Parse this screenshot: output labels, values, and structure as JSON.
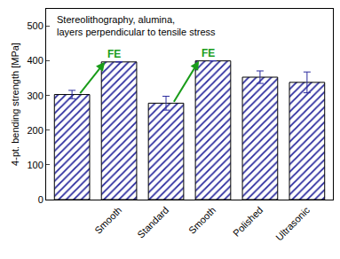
{
  "chart_data": {
    "type": "bar",
    "annotation": [
      "Stereolithography, alumina,",
      "layers perpendicular to tensile stress"
    ],
    "y_label": "4-pt. bending strength [MPa]",
    "categories": [
      null,
      "Smooth",
      "Standard",
      "Smooth",
      "Polished",
      "Ultrasonic"
    ],
    "values": [
      303,
      397,
      278,
      400,
      353,
      338
    ],
    "errors": [
      12,
      null,
      20,
      null,
      18,
      30
    ],
    "color": "#2b2b9e",
    "ylim": [
      0,
      550
    ],
    "yticks": [
      0,
      100,
      200,
      300,
      400,
      500
    ],
    "grid": false,
    "arrows": [
      {
        "text": "FE",
        "from": 0,
        "to": 1,
        "color": "#1a9c1a"
      },
      {
        "text": "FE",
        "from": 2,
        "to": 3,
        "color": "#1a9c1a"
      }
    ]
  }
}
